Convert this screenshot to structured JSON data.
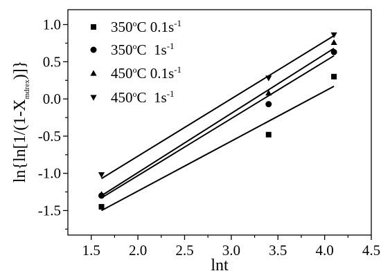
{
  "chart_data": {
    "type": "scatter",
    "xlabel": "lnt",
    "ylabel_main": "ln{ln[1/(1-X",
    "ylabel_sub": "mdrex",
    "ylabel_end": ")]}",
    "xlim": [
      1.25,
      4.5
    ],
    "ylim": [
      -1.83,
      1.2
    ],
    "xticks": [
      "1.5",
      "2.0",
      "2.5",
      "3.0",
      "3.5",
      "4.0",
      "4.5"
    ],
    "xtick_values": [
      1.5,
      2.0,
      2.5,
      3.0,
      3.5,
      4.0,
      4.5
    ],
    "yticks": [
      "1.0",
      "0.5",
      "0.0",
      "-0.5",
      "-1.0",
      "-1.5"
    ],
    "ytick_values": [
      1.0,
      0.5,
      0.0,
      -0.5,
      -1.0,
      -1.5
    ],
    "grid": false,
    "legend_position": "top-left",
    "marker_color": "#000000",
    "series": [
      {
        "name": "350°C 0.1s-1",
        "legend_temp": "350",
        "legend_rate": "0.1s",
        "legend_exp": "-1",
        "legend_gap": false,
        "marker": "square",
        "x": [
          1.61,
          3.4,
          4.1
        ],
        "y": [
          -1.45,
          -0.48,
          0.3
        ],
        "fit": [
          [
            1.61,
            -1.5
          ],
          [
            4.1,
            0.17
          ]
        ]
      },
      {
        "name": "350°C 1s-1",
        "legend_temp": "350",
        "legend_rate": "1s",
        "legend_exp": "-1",
        "legend_gap": true,
        "marker": "circle",
        "x": [
          1.61,
          3.4,
          4.1
        ],
        "y": [
          -1.3,
          -0.07,
          0.63
        ],
        "fit": [
          [
            1.61,
            -1.33
          ],
          [
            4.1,
            0.58
          ]
        ]
      },
      {
        "name": "450°C 0.1s-1",
        "legend_temp": "450",
        "legend_rate": "0.1s",
        "legend_exp": "-1",
        "legend_gap": false,
        "marker": "triangle-up",
        "x": [
          1.61,
          3.4,
          4.1
        ],
        "y": [
          -1.28,
          0.08,
          0.76
        ],
        "fit": [
          [
            1.61,
            -1.3
          ],
          [
            4.1,
            0.68
          ]
        ]
      },
      {
        "name": "450°C 1s-1",
        "legend_temp": "450",
        "legend_rate": "1s",
        "legend_exp": "-1",
        "legend_gap": true,
        "marker": "triangle-down",
        "x": [
          1.61,
          3.4,
          4.1
        ],
        "y": [
          -1.02,
          0.28,
          0.86
        ],
        "fit": [
          [
            1.61,
            -1.07
          ],
          [
            4.1,
            0.85
          ]
        ]
      }
    ]
  }
}
